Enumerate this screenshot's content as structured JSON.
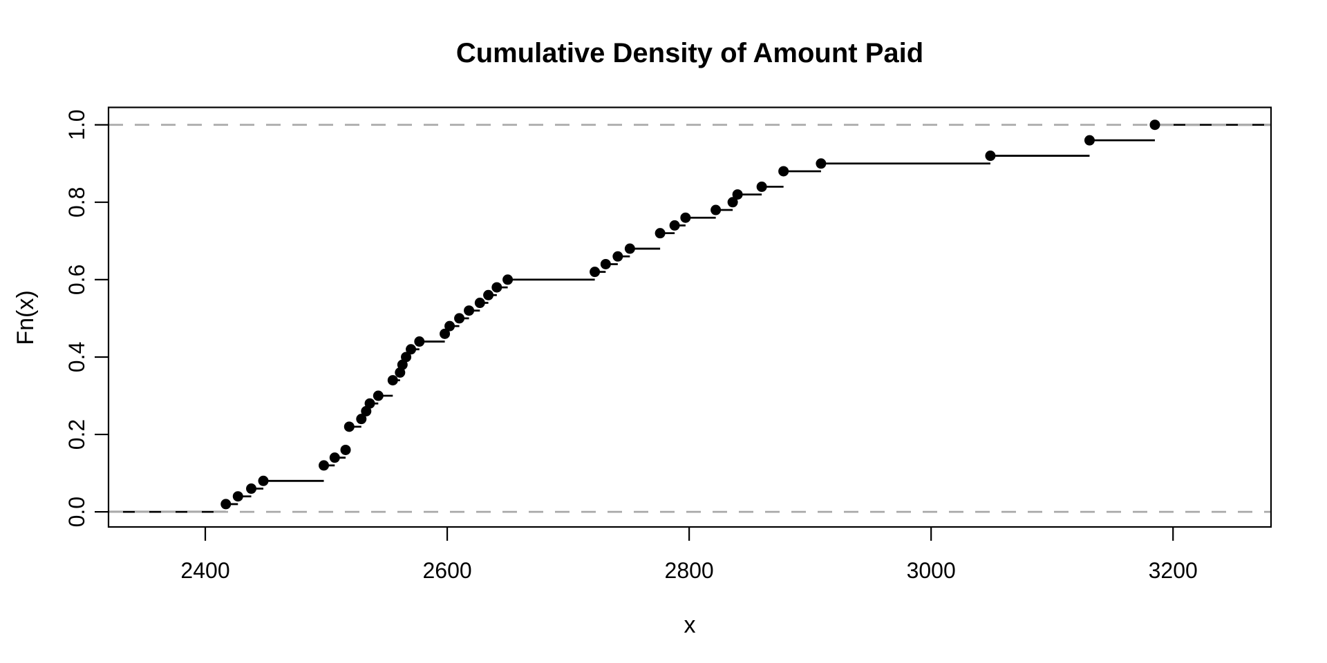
{
  "chart_data": {
    "type": "step",
    "subtype": "ecdf",
    "title": "Cumulative Density of Amount Paid",
    "xlabel": "x",
    "ylabel": "Fn(x)",
    "xlim": [
      2320,
      3281
    ],
    "ylim": [
      -0.039,
      1.045
    ],
    "x_ticks": {
      "values": [
        2400,
        2600,
        2800,
        3000,
        3200
      ],
      "labels": [
        "2400",
        "2600",
        "2800",
        "3000",
        "3200"
      ]
    },
    "y_ticks": {
      "values": [
        0.0,
        0.2,
        0.4,
        0.6,
        0.8,
        1.0
      ],
      "labels": [
        "0.0",
        "0.2",
        "0.4",
        "0.6",
        "0.8",
        "1.0"
      ]
    },
    "grid": false,
    "legend": null,
    "point_color": "#000000",
    "line_color": "#000000",
    "reference_line_color": "#a9a9a9",
    "reference_lines": [
      0.0,
      1.0
    ],
    "points": [
      {
        "x": 2417,
        "F": 0.02
      },
      {
        "x": 2427,
        "F": 0.04
      },
      {
        "x": 2438,
        "F": 0.06
      },
      {
        "x": 2448,
        "F": 0.08
      },
      {
        "x": 2498,
        "F": 0.12
      },
      {
        "x": 2507,
        "F": 0.14
      },
      {
        "x": 2516,
        "F": 0.16
      },
      {
        "x": 2519,
        "F": 0.22
      },
      {
        "x": 2529,
        "F": 0.24
      },
      {
        "x": 2533,
        "F": 0.26
      },
      {
        "x": 2536,
        "F": 0.28
      },
      {
        "x": 2543,
        "F": 0.3
      },
      {
        "x": 2555,
        "F": 0.34
      },
      {
        "x": 2561,
        "F": 0.36
      },
      {
        "x": 2563,
        "F": 0.38
      },
      {
        "x": 2566,
        "F": 0.4
      },
      {
        "x": 2570,
        "F": 0.42
      },
      {
        "x": 2577,
        "F": 0.44
      },
      {
        "x": 2598,
        "F": 0.46
      },
      {
        "x": 2602,
        "F": 0.48
      },
      {
        "x": 2610,
        "F": 0.5
      },
      {
        "x": 2618,
        "F": 0.52
      },
      {
        "x": 2627,
        "F": 0.54
      },
      {
        "x": 2634,
        "F": 0.56
      },
      {
        "x": 2641,
        "F": 0.58
      },
      {
        "x": 2650,
        "F": 0.6
      },
      {
        "x": 2722,
        "F": 0.62
      },
      {
        "x": 2731,
        "F": 0.64
      },
      {
        "x": 2741,
        "F": 0.66
      },
      {
        "x": 2751,
        "F": 0.68
      },
      {
        "x": 2776,
        "F": 0.72
      },
      {
        "x": 2788,
        "F": 0.74
      },
      {
        "x": 2797,
        "F": 0.76
      },
      {
        "x": 2822,
        "F": 0.78
      },
      {
        "x": 2836,
        "F": 0.8
      },
      {
        "x": 2840,
        "F": 0.82
      },
      {
        "x": 2860,
        "F": 0.84
      },
      {
        "x": 2878,
        "F": 0.88
      },
      {
        "x": 2909,
        "F": 0.9
      },
      {
        "x": 3049,
        "F": 0.92
      },
      {
        "x": 3131,
        "F": 0.96
      },
      {
        "x": 3185,
        "F": 1.0
      }
    ],
    "observations": [
      2417,
      2427,
      2438,
      2448,
      2498,
      2498,
      2507,
      2516,
      2519,
      2519,
      2519,
      2529,
      2533,
      2536,
      2543,
      2555,
      2555,
      2561,
      2563,
      2566,
      2570,
      2577,
      2598,
      2602,
      2610,
      2618,
      2627,
      2634,
      2641,
      2650,
      2722,
      2731,
      2741,
      2751,
      2776,
      2776,
      2788,
      2797,
      2822,
      2836,
      2840,
      2860,
      2878,
      2878,
      2909,
      3049,
      3131,
      3131,
      3185,
      3185
    ],
    "n": 50
  }
}
